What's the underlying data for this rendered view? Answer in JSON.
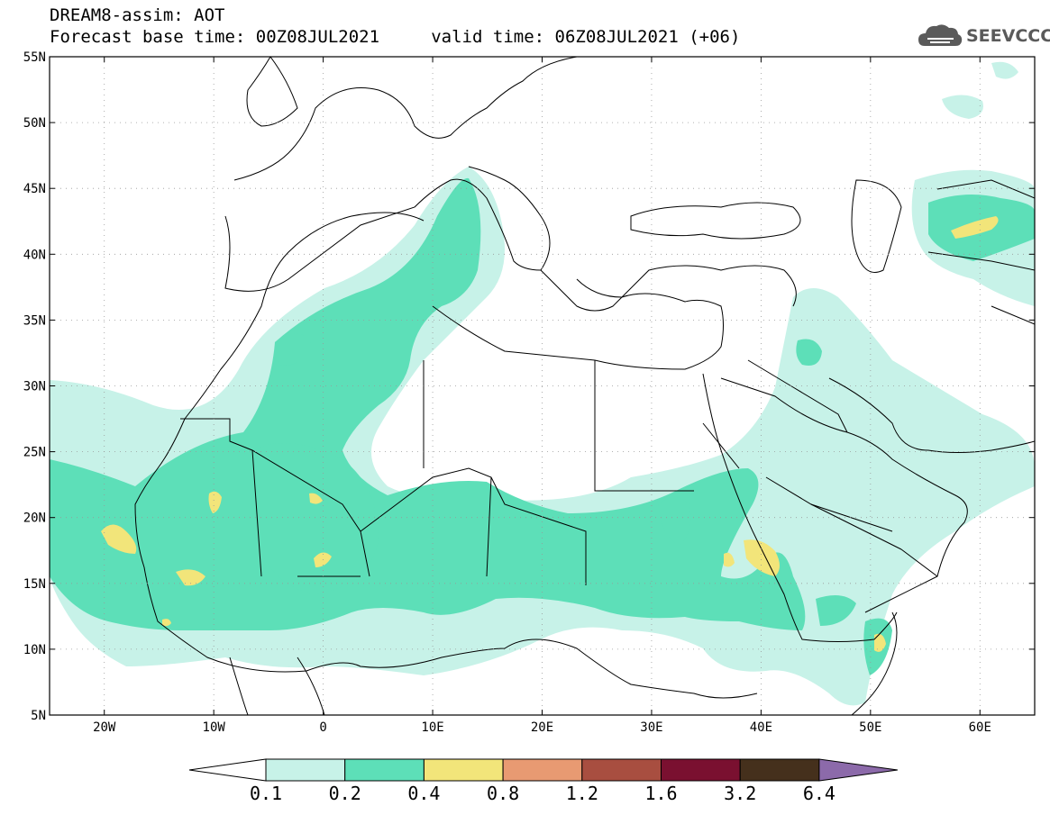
{
  "header": {
    "title_line1": "DREAM8-assim: AOT",
    "title_line2": "Forecast base time: 00Z08JUL2021     valid time: 06Z08JUL2021 (+06)"
  },
  "logo": {
    "text": "SEEVCCC",
    "icon": "cloud-icon"
  },
  "map": {
    "lon_range": [
      -25,
      65
    ],
    "lat_range": [
      5,
      55
    ],
    "grid": "dotted",
    "lat_ticks": [
      "55N",
      "50N",
      "45N",
      "40N",
      "35N",
      "30N",
      "25N",
      "20N",
      "15N",
      "10N",
      "5N"
    ],
    "lon_ticks": [
      "20W",
      "10W",
      "0",
      "10E",
      "20E",
      "30E",
      "40E",
      "50E",
      "60E"
    ]
  },
  "colorbar": {
    "labels": [
      "0.1",
      "0.2",
      "0.4",
      "0.8",
      "1.2",
      "1.6",
      "3.2",
      "6.4"
    ],
    "colors": [
      "#c7f2e8",
      "#5ddfb8",
      "#f2e57a",
      "#e89a72",
      "#a84e40",
      "#7a1030",
      "#45301c",
      "#8c6aaa"
    ],
    "under_color": "#ffffff"
  }
}
